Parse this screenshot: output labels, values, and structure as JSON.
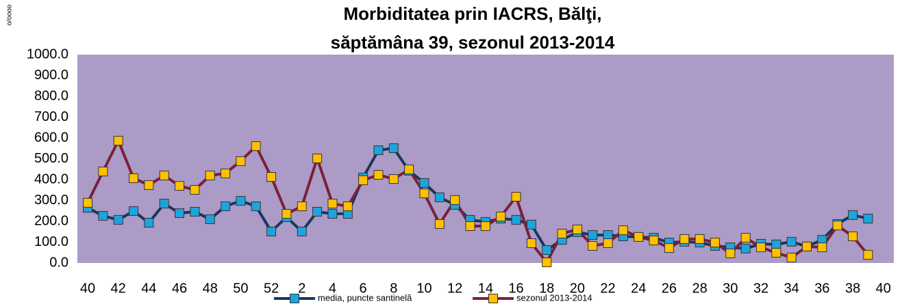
{
  "chart_data": {
    "type": "line",
    "title": "Morbiditatea prin IACRS, Bălţi,",
    "subtitle": "săptămâna 39, sezonul  2013-2014",
    "y_label": "o/oooo",
    "categories": [
      "40",
      null,
      "42",
      null,
      "44",
      null,
      "46",
      null,
      "48",
      null,
      "50",
      null,
      "52",
      null,
      "2",
      null,
      "4",
      null,
      "6",
      null,
      "8",
      null,
      "10",
      null,
      "12",
      null,
      "14",
      null,
      "16",
      null,
      "18",
      null,
      "20",
      null,
      "22",
      null,
      "24",
      null,
      "26",
      null,
      "28",
      null,
      "30",
      null,
      "32",
      null,
      "34",
      null,
      "36",
      null,
      "38",
      null,
      "40"
    ],
    "series": [
      {
        "name": "media, puncte santinelă",
        "color": "#17375e",
        "marker_color": "#1fa3dd",
        "values": [
          265,
          226,
          207,
          249,
          193,
          285,
          239,
          246,
          210,
          272,
          298,
          272,
          151,
          220,
          151,
          246,
          236,
          236,
          410,
          541,
          551,
          443,
          384,
          315,
          279,
          207,
          197,
          213,
          207,
          184,
          62,
          111,
          148,
          134,
          134,
          128,
          125,
          121,
          98,
          102,
          98,
          82,
          75,
          69,
          92,
          89,
          102,
          79,
          111,
          187,
          230,
          213,
          null
        ]
      },
      {
        "name": "sezonul 2013-2014",
        "color": "#7b1f3a",
        "marker_color": "#ffc000",
        "values": [
          289,
          439,
          587,
          407,
          374,
          420,
          370,
          351,
          420,
          430,
          489,
          561,
          413,
          236,
          272,
          502,
          285,
          272,
          397,
          423,
          403,
          449,
          334,
          187,
          302,
          177,
          177,
          223,
          318,
          95,
          3,
          141,
          161,
          82,
          95,
          157,
          125,
          108,
          72,
          115,
          115,
          98,
          46,
          121,
          75,
          49,
          26,
          79,
          75,
          180,
          128,
          39,
          null
        ]
      }
    ],
    "ylim": [
      0,
      1000
    ],
    "yticks": [
      {
        "value": 0,
        "label": "0.0"
      },
      {
        "value": 100,
        "label": "100.0"
      },
      {
        "value": 200,
        "label": "200.0"
      },
      {
        "value": 300,
        "label": "300.0"
      },
      {
        "value": 400,
        "label": "400.0"
      },
      {
        "value": 500,
        "label": "500.0"
      },
      {
        "value": 600,
        "label": "600.0"
      },
      {
        "value": 700,
        "label": "700.0"
      },
      {
        "value": 800,
        "label": "800.0"
      },
      {
        "value": 900,
        "label": "900.0"
      },
      {
        "value": 1000,
        "label": "1000.0"
      }
    ],
    "plot_background": "#ab9bc6",
    "grid": false
  }
}
